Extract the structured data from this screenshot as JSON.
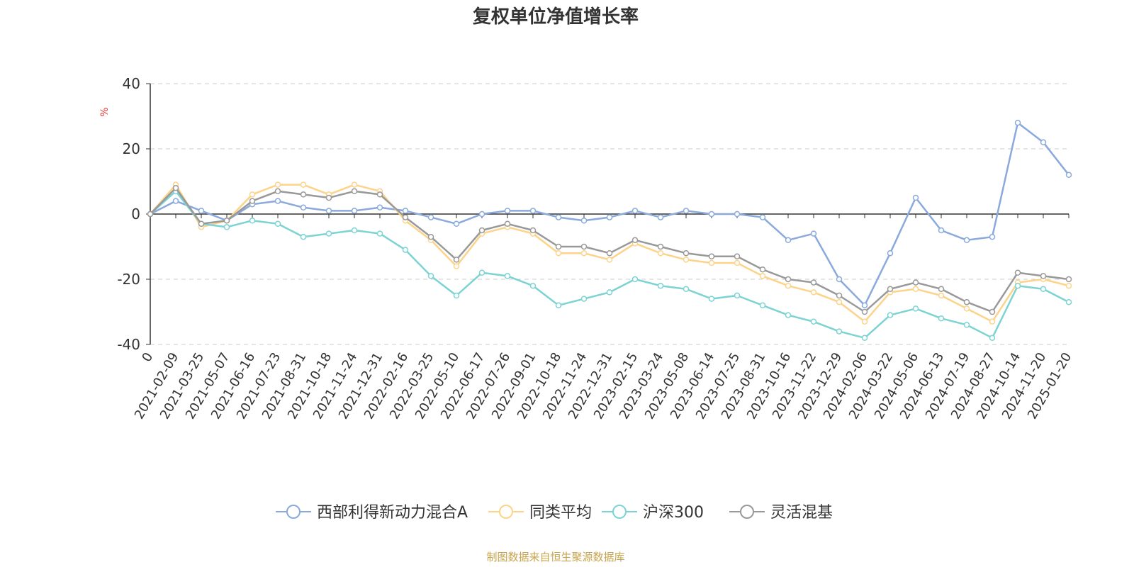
{
  "chart_data": {
    "type": "line",
    "title": "复权单位净值增长率",
    "y_unit": "%",
    "ylim": [
      -40,
      40
    ],
    "yticks": [
      40,
      20,
      0,
      -20,
      -40
    ],
    "grid": true,
    "legend_position": "bottom",
    "x_labels": [
      "0",
      "2021-02-09",
      "2021-03-25",
      "2021-05-07",
      "2021-06-16",
      "2021-07-23",
      "2021-08-31",
      "2021-10-18",
      "2021-11-24",
      "2021-12-31",
      "2022-02-16",
      "2022-03-25",
      "2022-05-10",
      "2022-06-17",
      "2022-07-26",
      "2022-09-01",
      "2022-10-18",
      "2022-11-24",
      "2022-12-31",
      "2023-02-15",
      "2023-03-24",
      "2023-05-08",
      "2023-06-14",
      "2023-07-25",
      "2023-08-31",
      "2023-10-16",
      "2023-11-22",
      "2023-12-29",
      "2024-02-06",
      "2024-03-22",
      "2024-05-06",
      "2024-06-13",
      "2024-07-19",
      "2024-08-27",
      "2024-10-14",
      "2024-11-20",
      "2025-01-20"
    ],
    "series": [
      {
        "name": "西部利得新动力混合A",
        "color": "#8aa9dc",
        "values": [
          0,
          4,
          1,
          -2,
          3,
          4,
          2,
          1,
          1,
          2,
          1,
          -1,
          -3,
          0,
          1,
          1,
          -1,
          -2,
          -1,
          1,
          -1,
          1,
          0,
          0,
          -1,
          -8,
          -6,
          -20,
          -28,
          -12,
          5,
          -5,
          -8,
          -7,
          28,
          22,
          12
        ]
      },
      {
        "name": "同类平均",
        "color": "#fdd389",
        "values": [
          0,
          9,
          -4,
          -2,
          6,
          9,
          9,
          6,
          9,
          7,
          -2,
          -8,
          -16,
          -6,
          -4,
          -6,
          -12,
          -12,
          -14,
          -9,
          -12,
          -14,
          -15,
          -15,
          -19,
          -22,
          -24,
          -27,
          -33,
          -24,
          -23,
          -25,
          -29,
          -33,
          -21,
          -20,
          -22
        ]
      },
      {
        "name": "沪深300",
        "color": "#7dd3d3",
        "values": [
          0,
          7,
          -3,
          -4,
          -2,
          -3,
          -7,
          -6,
          -5,
          -6,
          -11,
          -19,
          -25,
          -18,
          -19,
          -22,
          -28,
          -26,
          -24,
          -20,
          -22,
          -23,
          -26,
          -25,
          -28,
          -31,
          -33,
          -36,
          -38,
          -31,
          -29,
          -32,
          -34,
          -38,
          -22,
          -23,
          -27
        ]
      },
      {
        "name": "灵活混基",
        "color": "#999999",
        "values": [
          0,
          8,
          -3,
          -2,
          4,
          7,
          6,
          5,
          7,
          6,
          -1,
          -7,
          -14,
          -5,
          -3,
          -5,
          -10,
          -10,
          -12,
          -8,
          -10,
          -12,
          -13,
          -13,
          -17,
          -20,
          -21,
          -25,
          -30,
          -23,
          -21,
          -23,
          -27,
          -30,
          -18,
          -19,
          -20
        ]
      }
    ]
  },
  "footer": {
    "source": "制图数据来自恒生聚源数据库"
  }
}
